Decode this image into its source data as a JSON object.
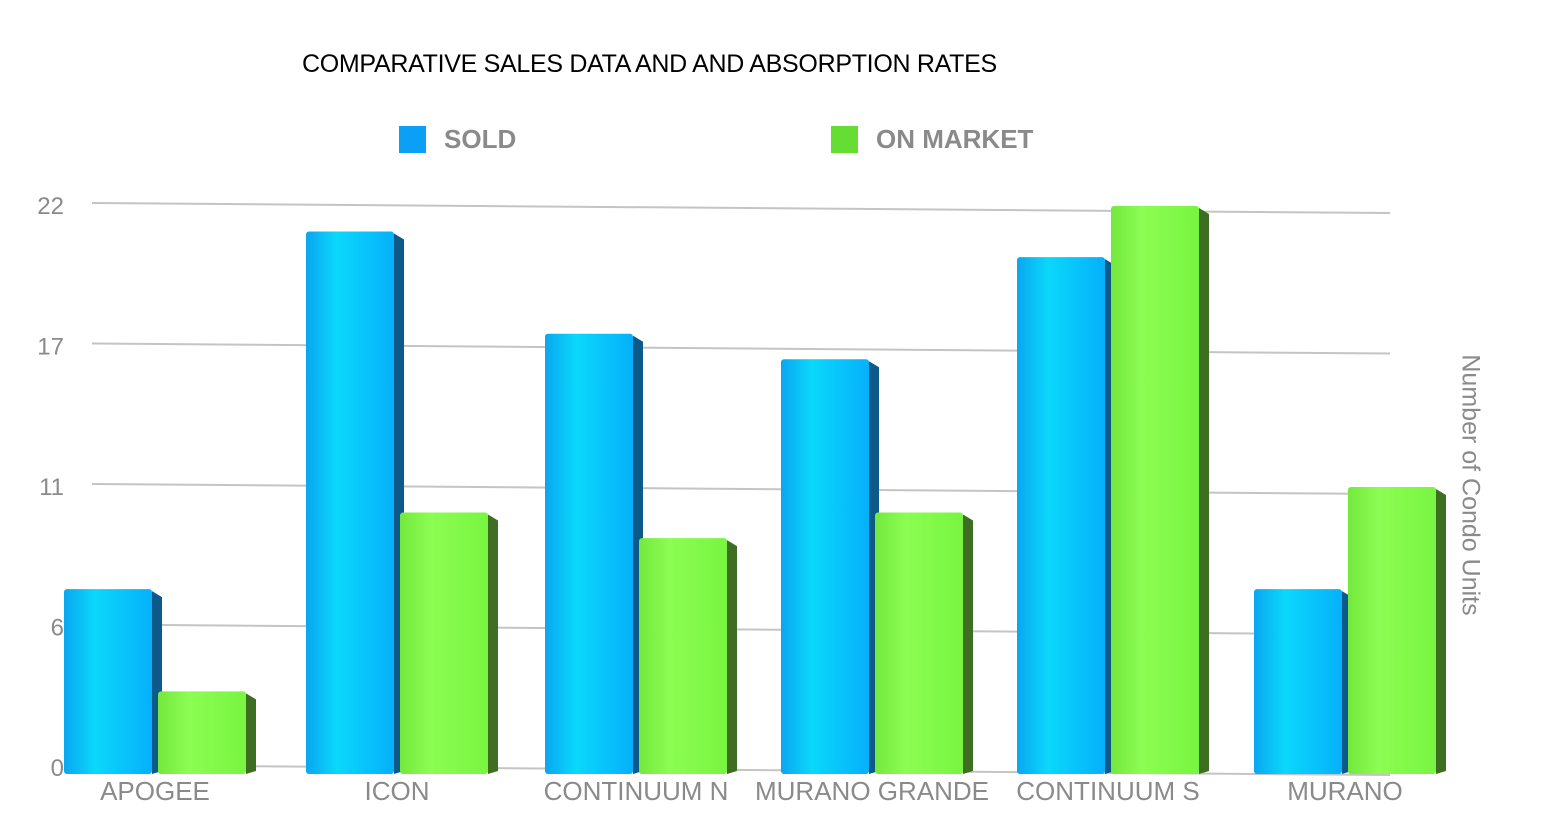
{
  "chart_data": {
    "type": "bar",
    "title": "COMPARATIVE SALES DATA AND AND ABSORPTION RATES",
    "xlabel": "",
    "ylabel": "Number of Condo Units",
    "categories": [
      "APOGEE",
      "ICON",
      "CONTINUUM N",
      "MURANO GRANDE",
      "CONTINUUM S",
      "MURANO"
    ],
    "series": [
      {
        "name": "SOLD",
        "color": "#0aa8f5",
        "values": [
          7,
          21,
          17,
          16,
          20,
          7
        ]
      },
      {
        "name": "ON MARKET",
        "color": "#66dd33",
        "values": [
          3,
          10,
          9,
          10,
          22,
          11
        ]
      }
    ],
    "yticks": [
      0,
      5.5,
      11,
      16.5,
      22
    ],
    "ytick_labels": [
      "0",
      "6",
      "11",
      "17",
      "22"
    ],
    "ylim": [
      0,
      22
    ],
    "grid": true,
    "legend": "top",
    "style": "3d"
  }
}
